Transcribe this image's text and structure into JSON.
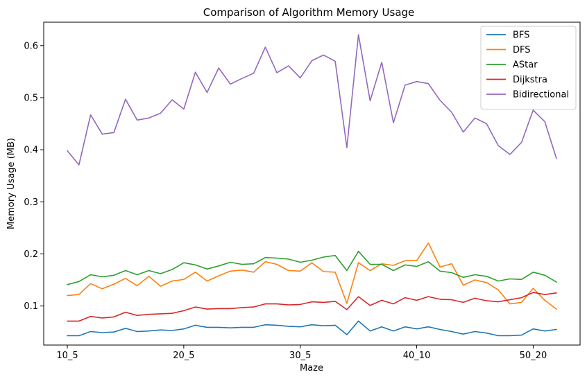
{
  "chart_data": {
    "type": "line",
    "title": "Comparison of Algorithm Memory Usage",
    "xlabel": "Maze",
    "ylabel": "Memory Usage (MB)",
    "x_tick_labels": [
      "10_5",
      "20_5",
      "30_5",
      "40_10",
      "50_20"
    ],
    "x_tick_indices": [
      0,
      10,
      20,
      30,
      40
    ],
    "point_count": 43,
    "ylim": [
      0.025,
      0.645
    ],
    "y_ticks": [
      0.1,
      0.2,
      0.3,
      0.4,
      0.5,
      0.6
    ],
    "grid": false,
    "legend_position": "top-right",
    "series": [
      {
        "name": "BFS",
        "color": "#1f77b4",
        "values": [
          0.043,
          0.043,
          0.051,
          0.049,
          0.05,
          0.057,
          0.051,
          0.052,
          0.054,
          0.053,
          0.056,
          0.063,
          0.059,
          0.059,
          0.058,
          0.059,
          0.059,
          0.064,
          0.063,
          0.061,
          0.06,
          0.064,
          0.062,
          0.063,
          0.045,
          0.071,
          0.052,
          0.06,
          0.052,
          0.06,
          0.056,
          0.06,
          0.055,
          0.051,
          0.046,
          0.051,
          0.048,
          0.043,
          0.043,
          0.044,
          0.056,
          0.052,
          0.055
        ]
      },
      {
        "name": "DFS",
        "color": "#ff7f0e",
        "values": [
          0.12,
          0.122,
          0.143,
          0.133,
          0.142,
          0.153,
          0.139,
          0.157,
          0.138,
          0.148,
          0.151,
          0.165,
          0.148,
          0.158,
          0.167,
          0.169,
          0.165,
          0.185,
          0.18,
          0.168,
          0.167,
          0.183,
          0.166,
          0.165,
          0.105,
          0.183,
          0.168,
          0.181,
          0.178,
          0.187,
          0.187,
          0.221,
          0.175,
          0.181,
          0.14,
          0.15,
          0.145,
          0.131,
          0.104,
          0.107,
          0.134,
          0.111,
          0.094
        ]
      },
      {
        "name": "AStar",
        "color": "#2ca02c",
        "values": [
          0.141,
          0.147,
          0.16,
          0.156,
          0.159,
          0.168,
          0.16,
          0.168,
          0.162,
          0.17,
          0.183,
          0.179,
          0.171,
          0.177,
          0.184,
          0.18,
          0.181,
          0.193,
          0.192,
          0.19,
          0.184,
          0.188,
          0.194,
          0.197,
          0.168,
          0.205,
          0.18,
          0.18,
          0.168,
          0.179,
          0.176,
          0.185,
          0.167,
          0.164,
          0.155,
          0.16,
          0.157,
          0.148,
          0.152,
          0.151,
          0.165,
          0.159,
          0.146
        ]
      },
      {
        "name": "Dijkstra",
        "color": "#d62728",
        "values": [
          0.071,
          0.071,
          0.08,
          0.077,
          0.079,
          0.088,
          0.082,
          0.084,
          0.085,
          0.086,
          0.091,
          0.098,
          0.094,
          0.095,
          0.095,
          0.097,
          0.098,
          0.104,
          0.104,
          0.102,
          0.103,
          0.108,
          0.107,
          0.109,
          0.093,
          0.118,
          0.101,
          0.111,
          0.104,
          0.116,
          0.111,
          0.118,
          0.113,
          0.112,
          0.107,
          0.115,
          0.11,
          0.108,
          0.112,
          0.116,
          0.126,
          0.122,
          0.125
        ]
      },
      {
        "name": "Bidirectional",
        "color": "#9467bd",
        "values": [
          0.398,
          0.371,
          0.467,
          0.43,
          0.433,
          0.497,
          0.457,
          0.461,
          0.47,
          0.496,
          0.478,
          0.549,
          0.51,
          0.557,
          0.526,
          0.537,
          0.547,
          0.597,
          0.548,
          0.561,
          0.538,
          0.571,
          0.582,
          0.57,
          0.404,
          0.621,
          0.494,
          0.568,
          0.452,
          0.524,
          0.531,
          0.527,
          0.495,
          0.472,
          0.434,
          0.461,
          0.45,
          0.408,
          0.391,
          0.414,
          0.476,
          0.454,
          0.383
        ]
      }
    ]
  }
}
